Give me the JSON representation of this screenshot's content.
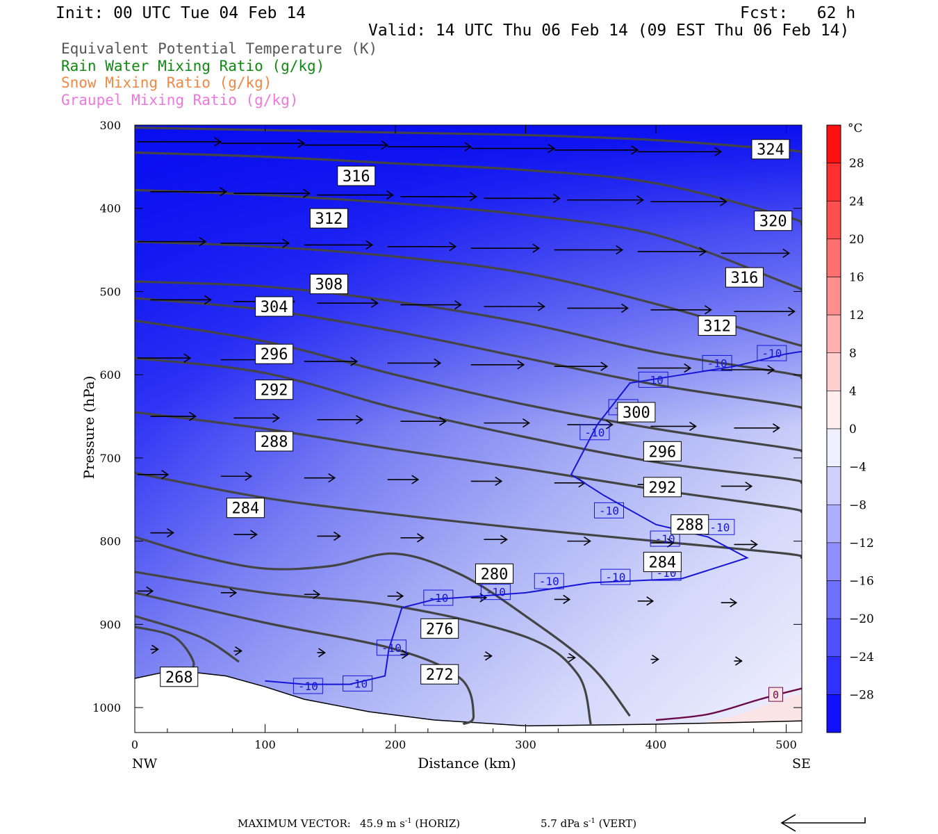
{
  "header": {
    "init": "Init: 00 UTC Tue 04 Feb 14",
    "fcst": "Fcst:   62 h",
    "valid": "Valid: 14 UTC Thu 06 Feb 14 (09 EST Thu 06 Feb 14)",
    "fields": [
      {
        "label": "Equivalent Potential Temperature (K)",
        "color": "#555555"
      },
      {
        "label": "Rain Water Mixing Ratio (g/kg)",
        "color": "#118811"
      },
      {
        "label": "Snow Mixing Ratio (g/kg)",
        "color": "#ee8844"
      },
      {
        "label": "Graupel Mixing Ratio (g/kg)",
        "color": "#ee77dd"
      }
    ]
  },
  "chart_data": {
    "type": "cross-section",
    "xlabel": "Distance (km)",
    "ylabel": "Pressure (hPa)",
    "xlim": [
      0,
      512
    ],
    "ylim": [
      1030,
      300
    ],
    "x_ticks": [
      0,
      100,
      200,
      300,
      400,
      500
    ],
    "y_ticks": [
      300,
      400,
      500,
      600,
      700,
      800,
      900,
      1000
    ],
    "x_end_labels": {
      "left": "NW",
      "right": "SE"
    },
    "colorbar": {
      "unit": "°C",
      "ticks": [
        28,
        24,
        20,
        16,
        12,
        8,
        4,
        0,
        -4,
        -8,
        -12,
        -16,
        -20,
        -24,
        -28
      ],
      "range": [
        -32,
        32
      ],
      "cold_color": "#0000ff",
      "warm_color": "#ff0000"
    },
    "theta_e_contours": [
      {
        "label": "324",
        "points": [
          [
            0,
            303
          ],
          [
            100,
            306
          ],
          [
            200,
            309
          ],
          [
            300,
            312
          ],
          [
            400,
            318
          ],
          [
            500,
            330
          ],
          [
            512,
            333
          ]
        ],
        "label_at": [
          488,
          329
        ]
      },
      {
        "label": "320",
        "points": [
          [
            0,
            333
          ],
          [
            100,
            338
          ],
          [
            200,
            346
          ],
          [
            300,
            354
          ],
          [
            400,
            370
          ],
          [
            500,
            410
          ],
          [
            512,
            420
          ]
        ],
        "label_at": [
          490,
          415
        ]
      },
      {
        "label": "316",
        "points": [
          [
            0,
            378
          ],
          [
            100,
            384
          ],
          [
            200,
            394
          ],
          [
            300,
            408
          ],
          [
            400,
            432
          ],
          [
            500,
            490
          ],
          [
            512,
            498
          ]
        ],
        "label_at": [
          468,
          483
        ],
        "label2": "316",
        "label2_at": [
          170,
          361
        ]
      },
      {
        "label": "312",
        "points": [
          [
            0,
            440
          ],
          [
            100,
            446
          ],
          [
            200,
            458
          ],
          [
            300,
            478
          ],
          [
            400,
            515
          ],
          [
            500,
            560
          ],
          [
            512,
            565
          ]
        ],
        "label_at": [
          447,
          541
        ],
        "label2": "312",
        "label2_at": [
          149,
          412
        ]
      },
      {
        "label": "308",
        "points": [
          [
            0,
            488
          ],
          [
            100,
            494
          ],
          [
            200,
            512
          ],
          [
            300,
            538
          ],
          [
            400,
            573
          ],
          [
            500,
            598
          ],
          [
            512,
            604
          ]
        ],
        "label_at": [
          149,
          491
        ]
      },
      {
        "label": "304",
        "points": [
          [
            0,
            508
          ],
          [
            100,
            522
          ],
          [
            200,
            548
          ],
          [
            300,
            580
          ],
          [
            400,
            612
          ],
          [
            500,
            636
          ],
          [
            512,
            640
          ]
        ],
        "label_at": [
          107,
          518
        ]
      },
      {
        "label": "300",
        "points": [
          [
            0,
            535
          ],
          [
            100,
            560
          ],
          [
            200,
            600
          ],
          [
            300,
            636
          ],
          [
            400,
            665
          ],
          [
            500,
            688
          ],
          [
            512,
            692
          ]
        ],
        "label_at": [
          385,
          645
        ]
      },
      {
        "label": "296",
        "points": [
          [
            0,
            580
          ],
          [
            100,
            598
          ],
          [
            200,
            640
          ],
          [
            300,
            675
          ],
          [
            400,
            705
          ],
          [
            500,
            725
          ],
          [
            512,
            730
          ]
        ],
        "label_at": [
          107,
          575
        ],
        "label2": "296",
        "label2_at": [
          405,
          692
        ]
      },
      {
        "label": "292",
        "points": [
          [
            0,
            645
          ],
          [
            100,
            665
          ],
          [
            200,
            690
          ],
          [
            300,
            713
          ],
          [
            400,
            738
          ],
          [
            500,
            760
          ],
          [
            512,
            765
          ]
        ],
        "label_at": [
          107,
          618
        ],
        "label2": "292",
        "label2_at": [
          405,
          735
        ]
      },
      {
        "label": "288",
        "points": [
          [
            0,
            718
          ],
          [
            100,
            748
          ],
          [
            200,
            768
          ],
          [
            300,
            785
          ],
          [
            400,
            800
          ],
          [
            500,
            815
          ],
          [
            512,
            820
          ]
        ],
        "label_at": [
          107,
          680
        ],
        "label2": "288",
        "label2_at": [
          426,
          780
        ]
      },
      {
        "label": "284",
        "points": [
          [
            0,
            795
          ],
          [
            50,
            818
          ],
          [
            100,
            833
          ],
          [
            150,
            830
          ],
          [
            200,
            815
          ],
          [
            250,
            840
          ],
          [
            300,
            890
          ],
          [
            350,
            950
          ],
          [
            380,
            1010
          ]
        ],
        "label_at": [
          85,
          760
        ],
        "label2": "284",
        "label2_at": [
          405,
          825
        ]
      },
      {
        "label": "280",
        "points": [
          [
            0,
            837
          ],
          [
            100,
            862
          ],
          [
            200,
            878
          ],
          [
            300,
            915
          ],
          [
            340,
            960
          ],
          [
            350,
            1020
          ]
        ],
        "label_at": [
          276,
          839
        ]
      },
      {
        "label": "276",
        "points": [
          [
            0,
            862
          ],
          [
            100,
            898
          ],
          [
            200,
            930
          ],
          [
            250,
            965
          ],
          [
            260,
            1010
          ],
          [
            252,
            1020
          ]
        ],
        "label_at": [
          234,
          905
        ]
      },
      {
        "label": "272",
        "points": [
          [
            0,
            890
          ],
          [
            50,
            915
          ],
          [
            80,
            945
          ]
        ],
        "label_at": [
          234,
          960
        ]
      },
      {
        "label": "268",
        "points": [
          [
            0,
            903
          ],
          [
            30,
            915
          ],
          [
            45,
            945
          ],
          [
            40,
            960
          ]
        ],
        "label_at": [
          34,
          963
        ]
      }
    ],
    "isotherm_minus10": {
      "label": "-10",
      "points": [
        [
          100,
          968
        ],
        [
          130,
          972
        ],
        [
          165,
          972
        ],
        [
          192,
          962
        ],
        [
          195,
          930
        ],
        [
          205,
          880
        ],
        [
          230,
          870
        ],
        [
          300,
          862
        ],
        [
          350,
          850
        ],
        [
          420,
          845
        ],
        [
          470,
          820
        ],
        [
          440,
          795
        ],
        [
          400,
          780
        ],
        [
          360,
          745
        ],
        [
          335,
          720
        ],
        [
          355,
          660
        ],
        [
          380,
          610
        ],
        [
          420,
          600
        ],
        [
          460,
          590
        ],
        [
          500,
          575
        ],
        [
          512,
          572
        ]
      ],
      "labels_at": [
        [
          133,
          974
        ],
        [
          171,
          971
        ],
        [
          197,
          928
        ],
        [
          233,
          868
        ],
        [
          277,
          861
        ],
        [
          318,
          848
        ],
        [
          369,
          843
        ],
        [
          408,
          838
        ],
        [
          407,
          797
        ],
        [
          449,
          783
        ],
        [
          364,
          763
        ],
        [
          353,
          669
        ],
        [
          375,
          639
        ],
        [
          398,
          606
        ],
        [
          447,
          586
        ],
        [
          489,
          574
        ]
      ]
    },
    "isotherm_zero": {
      "label": "0",
      "points": [
        [
          400,
          1015
        ],
        [
          440,
          1008
        ],
        [
          480,
          990
        ],
        [
          512,
          977
        ]
      ],
      "label_at": [
        492,
        985
      ]
    },
    "terrain": [
      [
        0,
        965
      ],
      [
        30,
        955
      ],
      [
        70,
        962
      ],
      [
        100,
        975
      ],
      [
        130,
        990
      ],
      [
        180,
        1005
      ],
      [
        230,
        1015
      ],
      [
        300,
        1022
      ],
      [
        400,
        1020
      ],
      [
        460,
        1018
      ],
      [
        512,
        1016
      ]
    ]
  },
  "footer": {
    "max_vector_label": "MAXIMUM VECTOR:",
    "horiz_value": "45.9 m s",
    "horiz_exp": "-1",
    "horiz_unit": "(HORIZ)",
    "vert_value": "5.7 dPa s",
    "vert_exp": "-1",
    "vert_unit": "(VERT)"
  }
}
